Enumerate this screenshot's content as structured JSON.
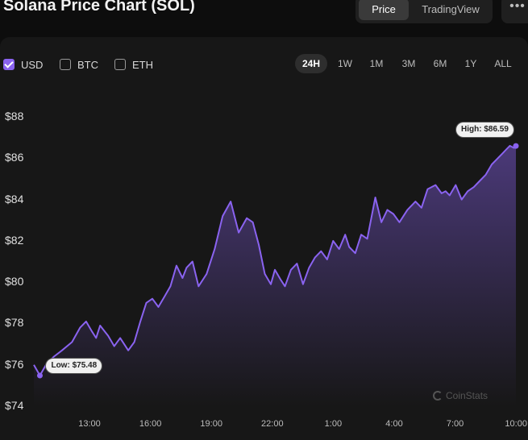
{
  "header": {
    "title": "Solana Price Chart (SOL)",
    "view_tabs": [
      {
        "label": "Price",
        "active": true
      },
      {
        "label": "TradingView",
        "active": false
      }
    ],
    "more_icon": "more-dots-icon",
    "more_glyph": "•••"
  },
  "currencies": [
    {
      "label": "USD",
      "checked": true
    },
    {
      "label": "BTC",
      "checked": false
    },
    {
      "label": "ETH",
      "checked": false
    }
  ],
  "ranges": [
    {
      "label": "24H",
      "active": true
    },
    {
      "label": "1W",
      "active": false
    },
    {
      "label": "1M",
      "active": false
    },
    {
      "label": "3M",
      "active": false
    },
    {
      "label": "6M",
      "active": false
    },
    {
      "label": "1Y",
      "active": false
    },
    {
      "label": "ALL",
      "active": false
    }
  ],
  "colors": {
    "line": "#8a63f0",
    "accent": "#8a63f0",
    "background": "#171717"
  },
  "watermark": "CoinStats",
  "chart_data": {
    "type": "area",
    "y_tick_labels": [
      "$88",
      "$86",
      "$84",
      "$82",
      "$80",
      "$78",
      "$76",
      "$74"
    ],
    "y_ticks": [
      88,
      86,
      84,
      82,
      80,
      78,
      76,
      74
    ],
    "ylim": [
      74,
      88
    ],
    "x_tick_labels": [
      "13:00",
      "16:00",
      "19:00",
      "22:00",
      "1:00",
      "4:00",
      "7:00",
      "10:00"
    ],
    "xlim": [
      0,
      24
    ],
    "annotations": {
      "low": {
        "label": "Low: $75.48",
        "x": 0.3,
        "y": 75.48
      },
      "high": {
        "label": "High: $86.59",
        "x": 24.0,
        "y": 86.59
      }
    },
    "series": [
      {
        "x": [
          0,
          0.3,
          0.6,
          1.0,
          1.4,
          1.9,
          2.3,
          2.6,
          2.9,
          3.1,
          3.3,
          3.7,
          4.0,
          4.3,
          4.7,
          5.0,
          5.3,
          5.6,
          5.9,
          6.2,
          6.5,
          6.8,
          7.1,
          7.4,
          7.6,
          7.9,
          8.2,
          8.6,
          9.0,
          9.4,
          9.8,
          10.2,
          10.6,
          10.9,
          11.2,
          11.5,
          11.8,
          12.0,
          12.3,
          12.5,
          12.8,
          13.1,
          13.4,
          13.7,
          14.0,
          14.3,
          14.6,
          14.9,
          15.2,
          15.5,
          15.7,
          16.0,
          16.3,
          16.6,
          17.0,
          17.3,
          17.6,
          17.9,
          18.2,
          18.6,
          19.0,
          19.3,
          19.6,
          20.0,
          20.3,
          20.5,
          20.7,
          21.0,
          21.3,
          21.6,
          21.9,
          22.2,
          22.5,
          22.8,
          23.1,
          23.3,
          23.5,
          23.7,
          23.9,
          24.0
        ],
        "y": [
          76.0,
          75.48,
          76.0,
          76.4,
          76.7,
          77.1,
          77.8,
          78.1,
          77.6,
          77.3,
          77.9,
          77.4,
          76.9,
          77.3,
          76.7,
          77.1,
          78.1,
          79.0,
          79.2,
          78.8,
          79.3,
          79.8,
          80.8,
          80.2,
          80.7,
          81.0,
          79.8,
          80.4,
          81.6,
          83.2,
          83.9,
          82.4,
          83.1,
          82.9,
          81.8,
          80.4,
          79.9,
          80.6,
          80.1,
          79.8,
          80.6,
          80.9,
          79.9,
          80.7,
          81.2,
          81.5,
          81.1,
          82.0,
          81.6,
          82.3,
          81.7,
          81.4,
          82.3,
          82.1,
          84.1,
          82.9,
          83.5,
          83.3,
          82.9,
          83.5,
          83.9,
          83.6,
          84.5,
          84.7,
          84.3,
          84.4,
          84.2,
          84.7,
          84.0,
          84.4,
          84.6,
          84.9,
          85.2,
          85.7,
          86.0,
          86.2,
          86.4,
          86.6,
          86.5,
          86.59
        ]
      }
    ],
    "grid": false,
    "legend": "none"
  }
}
